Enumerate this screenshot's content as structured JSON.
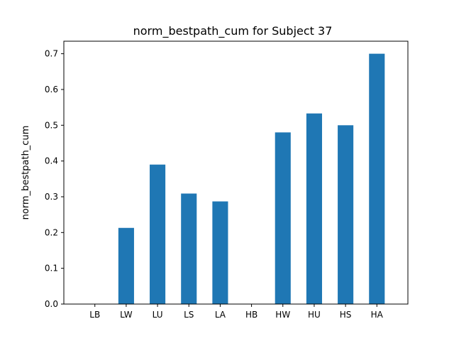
{
  "chart_data": {
    "type": "bar",
    "title": "norm_bestpath_cum for Subject 37",
    "xlabel": "",
    "ylabel": "norm_bestpath_cum",
    "categories": [
      "LB",
      "LW",
      "LU",
      "LS",
      "LA",
      "HB",
      "HW",
      "HU",
      "HS",
      "HA"
    ],
    "values": [
      0.0,
      0.213,
      0.39,
      0.309,
      0.287,
      0.0,
      0.48,
      0.533,
      0.5,
      0.7
    ],
    "ylim": [
      0,
      0.735
    ],
    "yticks": [
      0.0,
      0.1,
      0.2,
      0.3,
      0.4,
      0.5,
      0.6,
      0.7
    ],
    "bar_color": "#1f77b4",
    "grid": false,
    "legend": "none"
  }
}
